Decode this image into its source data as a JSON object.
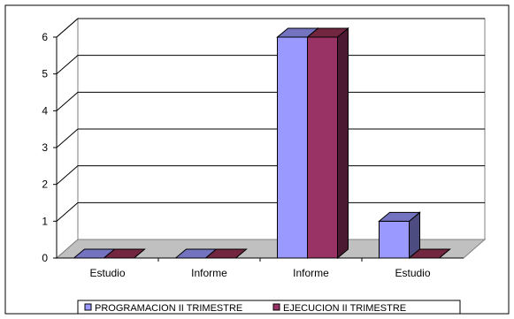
{
  "chart_data": {
    "type": "bar",
    "categories": [
      "Estudio",
      "Informe",
      "Informe",
      "Estudio"
    ],
    "series": [
      {
        "name": "PROGRAMACION II TRIMESTRE",
        "values": [
          0,
          0,
          6,
          1
        ]
      },
      {
        "name": "EJECUCION II TRIMESTRE",
        "values": [
          0,
          0,
          6,
          0
        ]
      }
    ],
    "y_ticks": [
      "0",
      "1",
      "2",
      "3",
      "4",
      "5",
      "6"
    ],
    "ylim": [
      0,
      6
    ],
    "grid": true,
    "legend_position": "bottom",
    "colors": {
      "series_front": [
        "#9999FF",
        "#993366"
      ],
      "series_side": [
        "#4C4C80",
        "#4C1933"
      ],
      "series_top": [
        "#7373BF",
        "#732640"
      ],
      "plot_back": "#ffffff",
      "floor": "#C0C0C0",
      "axis": "#000000"
    }
  }
}
